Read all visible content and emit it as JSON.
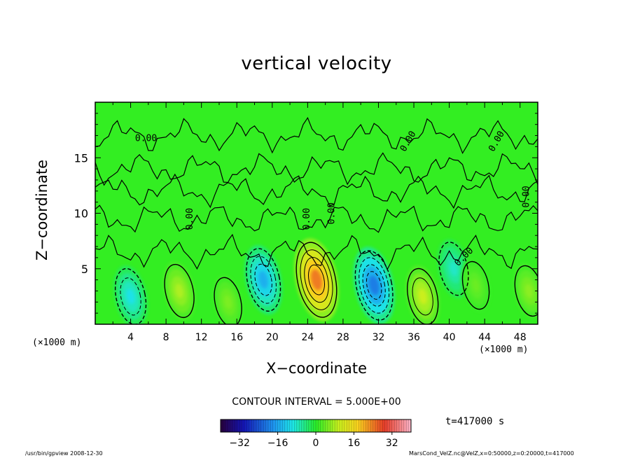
{
  "chart_data": {
    "type": "heatmap",
    "title": "vertical velocity",
    "xlabel": "X−coordinate",
    "ylabel": "Z−coordinate",
    "x_unit": "(×1000 m)",
    "y_unit": "(×1000 m)",
    "xlim": [
      0,
      50
    ],
    "ylim": [
      0,
      20
    ],
    "x_ticks": [
      4,
      8,
      12,
      16,
      20,
      24,
      28,
      32,
      36,
      40,
      44,
      48
    ],
    "y_ticks": [
      5,
      10,
      15
    ],
    "contour_interval": "CONTOUR INTERVAL = 5.000E+00",
    "contour_labels": [
      "0.00",
      "0.00",
      "0.00",
      "0.00",
      "0.00",
      "0.00",
      "0.00",
      "0.00"
    ],
    "colorbar": {
      "range": [
        -40,
        40
      ],
      "ticks": [
        -32,
        -16,
        0,
        16,
        32
      ],
      "tick_labels": [
        "−32",
        "−16",
        "0",
        "16",
        "32"
      ]
    },
    "features": [
      {
        "x": 4,
        "z": 2.5,
        "value": -10
      },
      {
        "x": 9.5,
        "z": 3,
        "value": 8
      },
      {
        "x": 15,
        "z": 2,
        "value": 5
      },
      {
        "x": 19,
        "z": 4,
        "value": -15
      },
      {
        "x": 25,
        "z": 4,
        "value": 24
      },
      {
        "x": 31.5,
        "z": 3.5,
        "value": -20
      },
      {
        "x": 37,
        "z": 2.5,
        "value": 10
      },
      {
        "x": 40.5,
        "z": 5,
        "value": -8
      },
      {
        "x": 43,
        "z": 3.5,
        "value": 4
      },
      {
        "x": 49,
        "z": 3,
        "value": 6
      }
    ],
    "time_label": "t=417000 s"
  },
  "footer": {
    "left": "/usr/bin/gpview   2008-12-30",
    "right": "MarsCond_VelZ.nc@VelZ,x=0:50000,z=0:20000,t=417000"
  },
  "colors": {
    "background_field": "#33ee22",
    "updraft": "#f5e81a",
    "downdraft": "#22c8ee"
  }
}
